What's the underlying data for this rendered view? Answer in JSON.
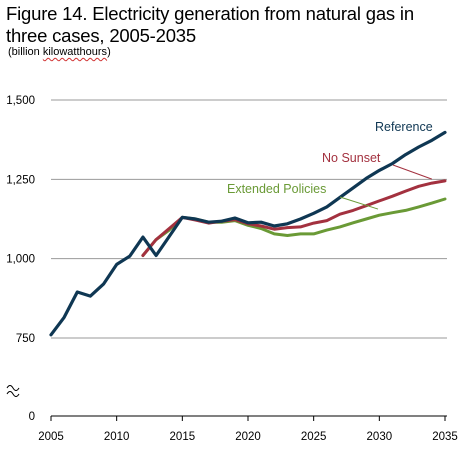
{
  "title": "Figure 14. Electricity generation from natural gas in three cases, 2005-2035",
  "subtitle": {
    "prefix": "(billion ",
    "unit_word": "kilowatthours",
    "suffix": ")"
  },
  "chart_data": {
    "type": "line",
    "title": "Figure 14. Electricity generation from natural gas in three cases, 2005-2035",
    "ylabel": "billion kilowatthours",
    "xlim": [
      2005,
      2035
    ],
    "ylim": [
      750,
      1500
    ],
    "axis_break": true,
    "y_ticks": [
      {
        "value": 0,
        "label": "0"
      },
      {
        "value": 750,
        "label": "750"
      },
      {
        "value": 1000,
        "label": "1,000"
      },
      {
        "value": 1250,
        "label": "1,250"
      },
      {
        "value": 1500,
        "label": "1,500"
      }
    ],
    "x_ticks": [
      {
        "value": 2005,
        "label": "2005"
      },
      {
        "value": 2010,
        "label": "2010"
      },
      {
        "value": 2015,
        "label": "2015"
      },
      {
        "value": 2020,
        "label": "2020"
      },
      {
        "value": 2025,
        "label": "2025"
      },
      {
        "value": 2030,
        "label": "2030"
      },
      {
        "value": 2035,
        "label": "2035"
      }
    ],
    "grid": true,
    "series": [
      {
        "name": "Extended Policies",
        "color": "#6a9a36",
        "x": [
          2012,
          2013,
          2014,
          2015,
          2016,
          2017,
          2018,
          2019,
          2020,
          2021,
          2022,
          2023,
          2024,
          2025,
          2026,
          2027,
          2028,
          2029,
          2030,
          2031,
          2032,
          2033,
          2034,
          2035
        ],
        "values": [
          1010,
          1060,
          1090,
          1130,
          1125,
          1115,
          1115,
          1120,
          1105,
          1095,
          1078,
          1073,
          1078,
          1078,
          1090,
          1100,
          1113,
          1125,
          1137,
          1145,
          1152,
          1163,
          1175,
          1188
        ]
      },
      {
        "name": "No Sunset",
        "color": "#a3313f",
        "x": [
          2012,
          2013,
          2014,
          2015,
          2016,
          2017,
          2018,
          2019,
          2020,
          2021,
          2022,
          2023,
          2024,
          2025,
          2026,
          2027,
          2028,
          2029,
          2030,
          2031,
          2032,
          2033,
          2034,
          2035
        ],
        "values": [
          1010,
          1060,
          1095,
          1130,
          1122,
          1112,
          1118,
          1123,
          1110,
          1103,
          1093,
          1098,
          1100,
          1112,
          1120,
          1140,
          1152,
          1167,
          1182,
          1197,
          1213,
          1228,
          1238,
          1245
        ]
      },
      {
        "name": "Reference",
        "color": "#0f3753",
        "x": [
          2005,
          2006,
          2007,
          2008,
          2009,
          2010,
          2011,
          2012,
          2013,
          2014,
          2015,
          2016,
          2017,
          2018,
          2019,
          2020,
          2021,
          2022,
          2023,
          2024,
          2025,
          2026,
          2027,
          2028,
          2029,
          2030,
          2031,
          2032,
          2033,
          2034,
          2035
        ],
        "values": [
          760,
          815,
          895,
          882,
          920,
          982,
          1008,
          1068,
          1010,
          1070,
          1130,
          1125,
          1115,
          1118,
          1128,
          1113,
          1115,
          1103,
          1110,
          1125,
          1143,
          1163,
          1193,
          1223,
          1253,
          1278,
          1300,
          1328,
          1352,
          1373,
          1398
        ]
      }
    ]
  }
}
